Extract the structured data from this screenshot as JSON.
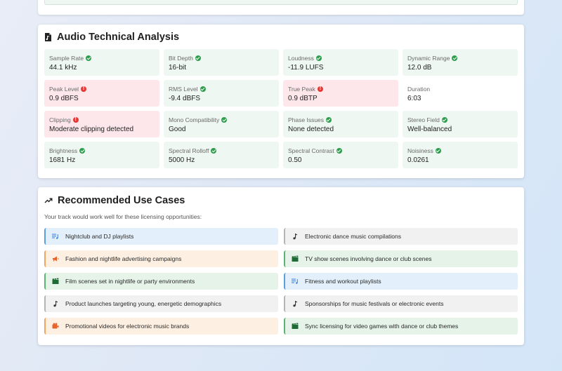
{
  "analysis": {
    "title": "Audio Technical Analysis",
    "metrics": [
      {
        "label": "Sample Rate",
        "value": "44.1 kHz",
        "status": "ok"
      },
      {
        "label": "Bit Depth",
        "value": "16-bit",
        "status": "ok"
      },
      {
        "label": "Loudness",
        "value": "-11.9 LUFS",
        "status": "ok"
      },
      {
        "label": "Dynamic Range",
        "value": "12.0 dB",
        "status": "ok"
      },
      {
        "label": "Peak Level",
        "value": "0.9 dBFS",
        "status": "error"
      },
      {
        "label": "RMS Level",
        "value": "-9.4 dBFS",
        "status": "ok"
      },
      {
        "label": "True Peak",
        "value": "0.9 dBTP",
        "status": "error"
      },
      {
        "label": "Duration",
        "value": "6:03",
        "status": "none"
      },
      {
        "label": "Clipping",
        "value": "Moderate clipping detected",
        "status": "error"
      },
      {
        "label": "Mono Compatibility",
        "value": "Good",
        "status": "ok"
      },
      {
        "label": "Phase Issues",
        "value": "None detected",
        "status": "ok"
      },
      {
        "label": "Stereo Field",
        "value": "Well-balanced",
        "status": "ok"
      },
      {
        "label": "Brightness",
        "value": "1681 Hz",
        "status": "ok"
      },
      {
        "label": "Spectral Rolloff",
        "value": "5000 Hz",
        "status": "ok"
      },
      {
        "label": "Spectral Contrast",
        "value": "0.50",
        "status": "ok"
      },
      {
        "label": "Noisiness",
        "value": "0.0261",
        "status": "ok"
      }
    ]
  },
  "use_cases": {
    "title": "Recommended Use Cases",
    "subtitle": "Your track would work well for these licensing opportunities:",
    "items": [
      {
        "label": "Nightclub and DJ playlists",
        "icon": "playlist-icon",
        "color": "blue"
      },
      {
        "label": "Electronic dance music compilations",
        "icon": "music-note-icon",
        "color": "gray"
      },
      {
        "label": "Fashion and nightlife advertising campaigns",
        "icon": "megaphone-icon",
        "color": "orange"
      },
      {
        "label": "TV show scenes involving dance or club scenes",
        "icon": "clapperboard-icon",
        "color": "green"
      },
      {
        "label": "Film scenes set in nightlife or party environments",
        "icon": "clapperboard-icon",
        "color": "green"
      },
      {
        "label": "Fitness and workout playlists",
        "icon": "playlist-icon",
        "color": "blue"
      },
      {
        "label": "Product launches targeting young, energetic demographics",
        "icon": "music-note-icon",
        "color": "gray"
      },
      {
        "label": "Sponsorships for music festivals or electronic events",
        "icon": "music-note-icon",
        "color": "gray"
      },
      {
        "label": "Promotional videos for electronic music brands",
        "icon": "video-icon",
        "color": "orange"
      },
      {
        "label": "Sync licensing for video games with dance or club themes",
        "icon": "clapperboard-icon",
        "color": "green"
      }
    ]
  },
  "colors": {
    "ok": "#2e9e4e",
    "error": "#e53935",
    "ok_bg": "#eef7f1",
    "error_bg": "#fde7ea"
  }
}
